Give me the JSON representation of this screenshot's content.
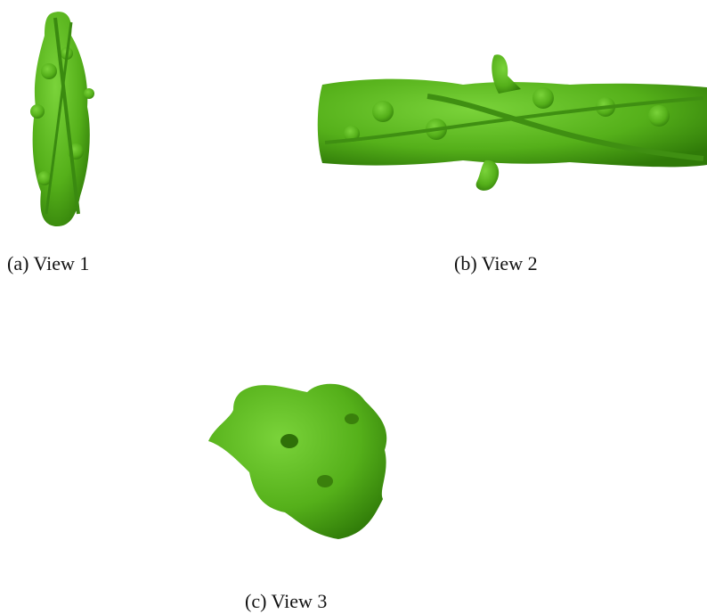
{
  "figure": {
    "panels": [
      {
        "caption": "(a) View 1"
      },
      {
        "caption": "(b) View 2"
      },
      {
        "caption": "(c) View 3"
      }
    ]
  }
}
